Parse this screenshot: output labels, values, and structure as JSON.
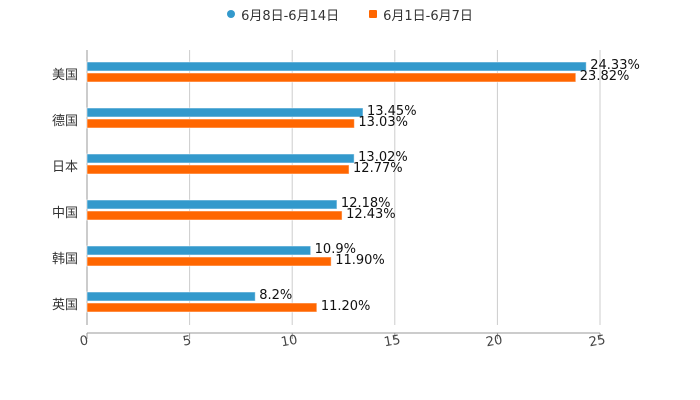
{
  "legend": [
    {
      "label": "6月8日-6月14日",
      "color": "#3399cc",
      "shape": "circle"
    },
    {
      "label": "6月1日-6月7日",
      "color": "#ff6600",
      "shape": "square"
    }
  ],
  "chart_data": {
    "type": "bar",
    "orientation": "horizontal",
    "title": "",
    "xlabel": "",
    "ylabel": "",
    "categories": [
      "美国",
      "德国",
      "日本",
      "中国",
      "韩国",
      "英国"
    ],
    "series": [
      {
        "name": "6月8日-6月14日",
        "color": "#3399cc",
        "values": [
          24.33,
          13.45,
          13.02,
          12.18,
          10.9,
          8.2
        ],
        "labels": [
          "24.33%",
          "13.45%",
          "13.02%",
          "12.18%",
          "10.9%",
          "8.2%"
        ]
      },
      {
        "name": "6月1日-6月7日",
        "color": "#ff6600",
        "values": [
          23.82,
          13.03,
          12.77,
          12.43,
          11.9,
          11.2
        ],
        "labels": [
          "23.82%",
          "13.03%",
          "12.77%",
          "12.43%",
          "11.90%",
          "11.20%"
        ]
      }
    ],
    "xlim": [
      0,
      25
    ],
    "xticks": [
      "0",
      "5",
      "10",
      "15",
      "20",
      "25"
    ],
    "grid": true,
    "legend_position": "top"
  }
}
